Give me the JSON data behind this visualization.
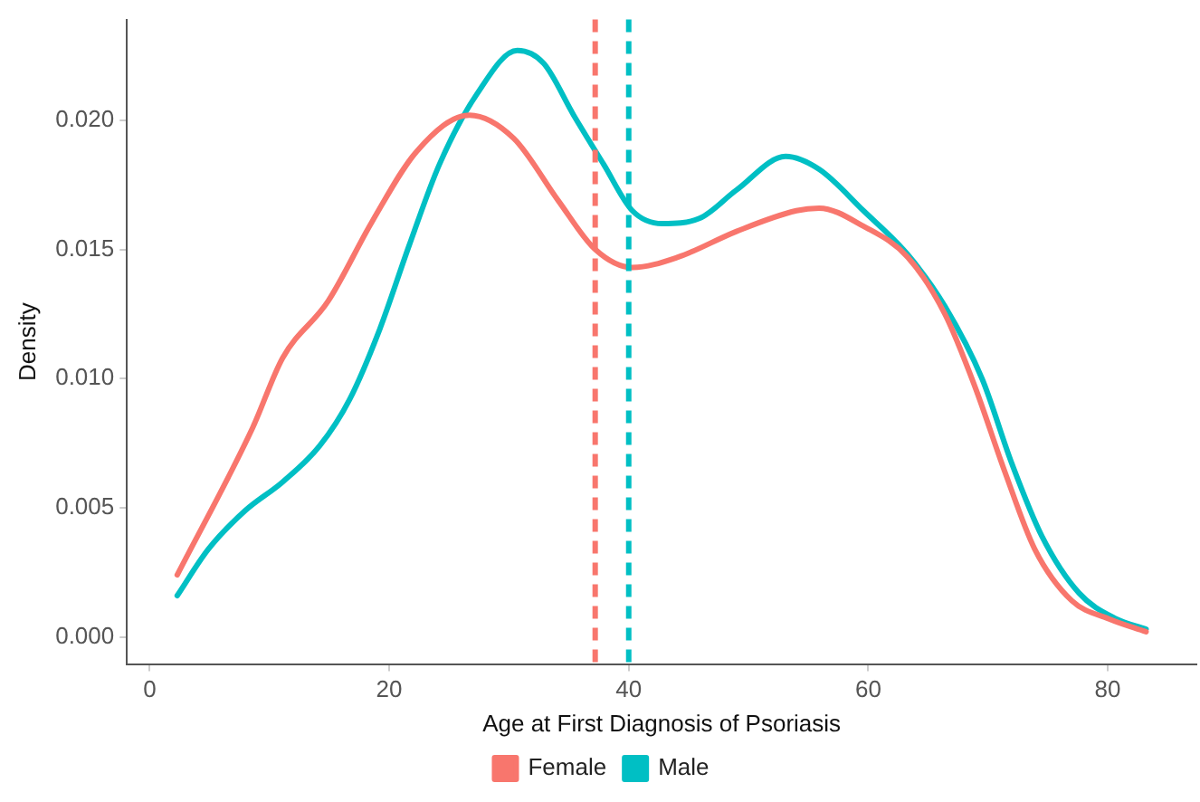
{
  "chart_data": {
    "type": "line",
    "xlabel": "Age at First Diagnosis of Psoriasis",
    "ylabel": "Density",
    "xlim": [
      -1.9,
      87.4
    ],
    "xticks": [
      0,
      20,
      40,
      60,
      80
    ],
    "ylim": [
      -0.00105,
      0.0239
    ],
    "yticks": [
      {
        "value": 0,
        "label": "0.000"
      },
      {
        "value": 0.005,
        "label": "0.005"
      },
      {
        "value": 0.01,
        "label": "0.010"
      },
      {
        "value": 0.015,
        "label": "0.015"
      },
      {
        "value": 0.02,
        "label": "0.020"
      }
    ],
    "grid": false,
    "legend": "bottom",
    "marker": "none",
    "line_style": "solid",
    "series": [
      {
        "name": "Female",
        "color": "#f8766d",
        "x": [
          2.3,
          8.6,
          11.1,
          14.9,
          18.6,
          22.3,
          26.7,
          30.4,
          34.1,
          37.2,
          40.3,
          44.1,
          49,
          54,
          55.9,
          59.6,
          63.3,
          66.4,
          68.9,
          71.4,
          73.9,
          77,
          80.1,
          83.2
        ],
        "values": [
          0.0024,
          0.0081,
          0.0108,
          0.013,
          0.0161,
          0.0188,
          0.0202,
          0.0193,
          0.0169,
          0.015,
          0.0143,
          0.0147,
          0.0157,
          0.0165,
          0.0166,
          0.0159,
          0.0147,
          0.0125,
          0.0097,
          0.0064,
          0.0034,
          0.0014,
          0.0007,
          0.0002
        ]
      },
      {
        "name": "Male",
        "color": "#00bfc4",
        "x": [
          2.3,
          4.9,
          8,
          11.1,
          14.2,
          16.7,
          19.2,
          21.7,
          24.2,
          27.3,
          30.7,
          32.9,
          35.4,
          37.9,
          40.3,
          42.8,
          45.9,
          49,
          53.1,
          55.9,
          59.6,
          63.3,
          66.4,
          69.5,
          72,
          74.5,
          77.6,
          80.7,
          83.2
        ],
        "values": [
          0.0016,
          0.0034,
          0.0049,
          0.006,
          0.0074,
          0.0092,
          0.0119,
          0.0152,
          0.0183,
          0.021,
          0.0227,
          0.0222,
          0.0202,
          0.0183,
          0.0165,
          0.016,
          0.0162,
          0.0173,
          0.0186,
          0.0181,
          0.0165,
          0.0148,
          0.0128,
          0.01,
          0.0067,
          0.0039,
          0.0017,
          0.0007,
          0.0003
        ]
      }
    ],
    "ref_lines": [
      {
        "axis": "x",
        "value": 37.2,
        "color": "#f8766d",
        "line_style": "dashed"
      },
      {
        "axis": "x",
        "value": 40,
        "color": "#00bfc4",
        "line_style": "dashed"
      }
    ]
  }
}
